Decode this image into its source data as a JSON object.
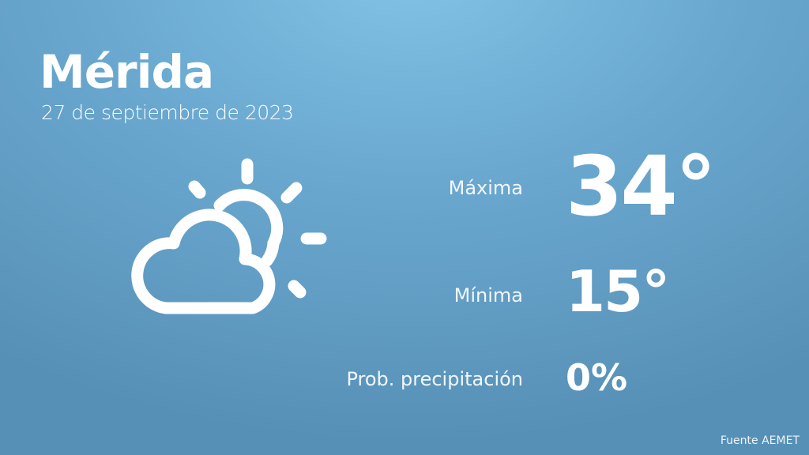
{
  "city": "Mérida",
  "date": "27 de septiembre de 2023",
  "weather_icon": "partly-cloudy-icon",
  "max": {
    "label": "Máxima",
    "value": "34°"
  },
  "min": {
    "label": "Mínima",
    "value": "15°"
  },
  "precip": {
    "label": "Prob. precipitación",
    "value": "0%"
  },
  "source": "Fuente AEMET",
  "colors": {
    "background_top": "#82c3e6",
    "background_bottom": "#5790b6",
    "text": "#ffffff"
  }
}
